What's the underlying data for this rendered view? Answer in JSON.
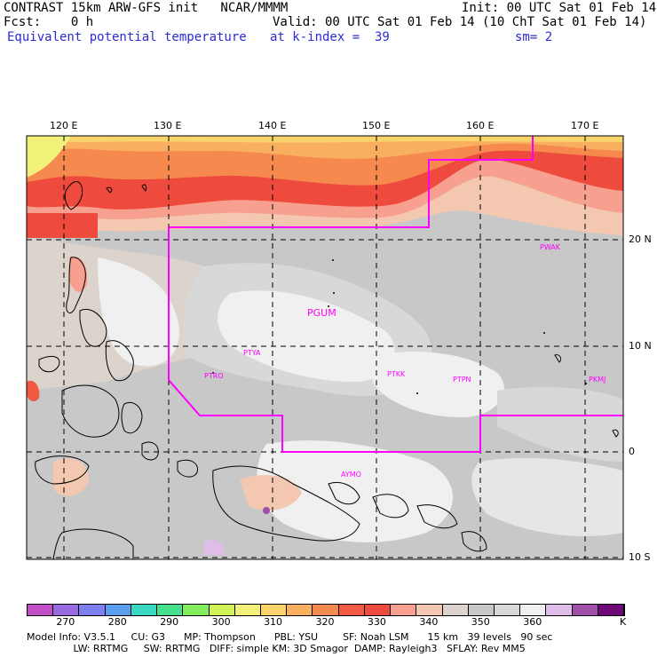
{
  "header": {
    "line1_left": "CONTRAST 15km ARW-GFS init   NCAR/MMMM",
    "line1_right": "Init: 00 UTC Sat 01 Feb 14",
    "line2_left": "Fcst:    0 h",
    "line2_right": "Valid: 00 UTC Sat 01 Feb 14 (10 ChT Sat 01 Feb 14)",
    "line3_left": "Equivalent potential temperature",
    "line3_mid": "at k-index =  39",
    "line3_right": "sm= 2"
  },
  "map": {
    "lon_labels": [
      "120 E",
      "130 E",
      "140 E",
      "150 E",
      "160 E",
      "170 E"
    ],
    "lat_labels": [
      "20 N",
      "10 N",
      "0",
      "10 S"
    ],
    "stations": [
      {
        "id": "PGUM",
        "name": "PGUM"
      },
      {
        "id": "PTYA",
        "name": "PTYA"
      },
      {
        "id": "PTRO",
        "name": "PTRO"
      },
      {
        "id": "PTKK",
        "name": "PTKK"
      },
      {
        "id": "PTPN",
        "name": "PTPN"
      },
      {
        "id": "PKMJ",
        "name": "PKMJ"
      },
      {
        "id": "PWAK",
        "name": "PWAK"
      },
      {
        "id": "AYMO",
        "name": "AYMO"
      }
    ],
    "boundary_color": "#ff00ff"
  },
  "colorbar": {
    "ticks": [
      "270",
      "280",
      "290",
      "300",
      "310",
      "320",
      "330",
      "340",
      "350",
      "360"
    ],
    "unit": "K",
    "colors": [
      "#c34fc8",
      "#9a6ae0",
      "#7f7ff0",
      "#5a9ef0",
      "#3ad8c2",
      "#46e08c",
      "#82ee5e",
      "#d2f25a",
      "#f2f27a",
      "#f8d46a",
      "#f8b060",
      "#f68a4e",
      "#f25a44",
      "#ef4a3e",
      "#f8a090",
      "#f4c8b0",
      "#dcd4cc",
      "#c8c8c8",
      "#d8d8d8",
      "#f0f0f0",
      "#e0bce8",
      "#a050a8",
      "#6e0a78"
    ]
  },
  "footer": {
    "line1": "Model Info: V3.5.1     CU: G3      MP: Thompson      PBL: YSU        SF: Noah LSM      15 km   39 levels   90 sec",
    "line2": "               LW: RRTMG     SW: RRTMG   DIFF: simple KM: 3D Smagor  DAMP: Rayleigh3   SFLAY: Rev MM5"
  }
}
